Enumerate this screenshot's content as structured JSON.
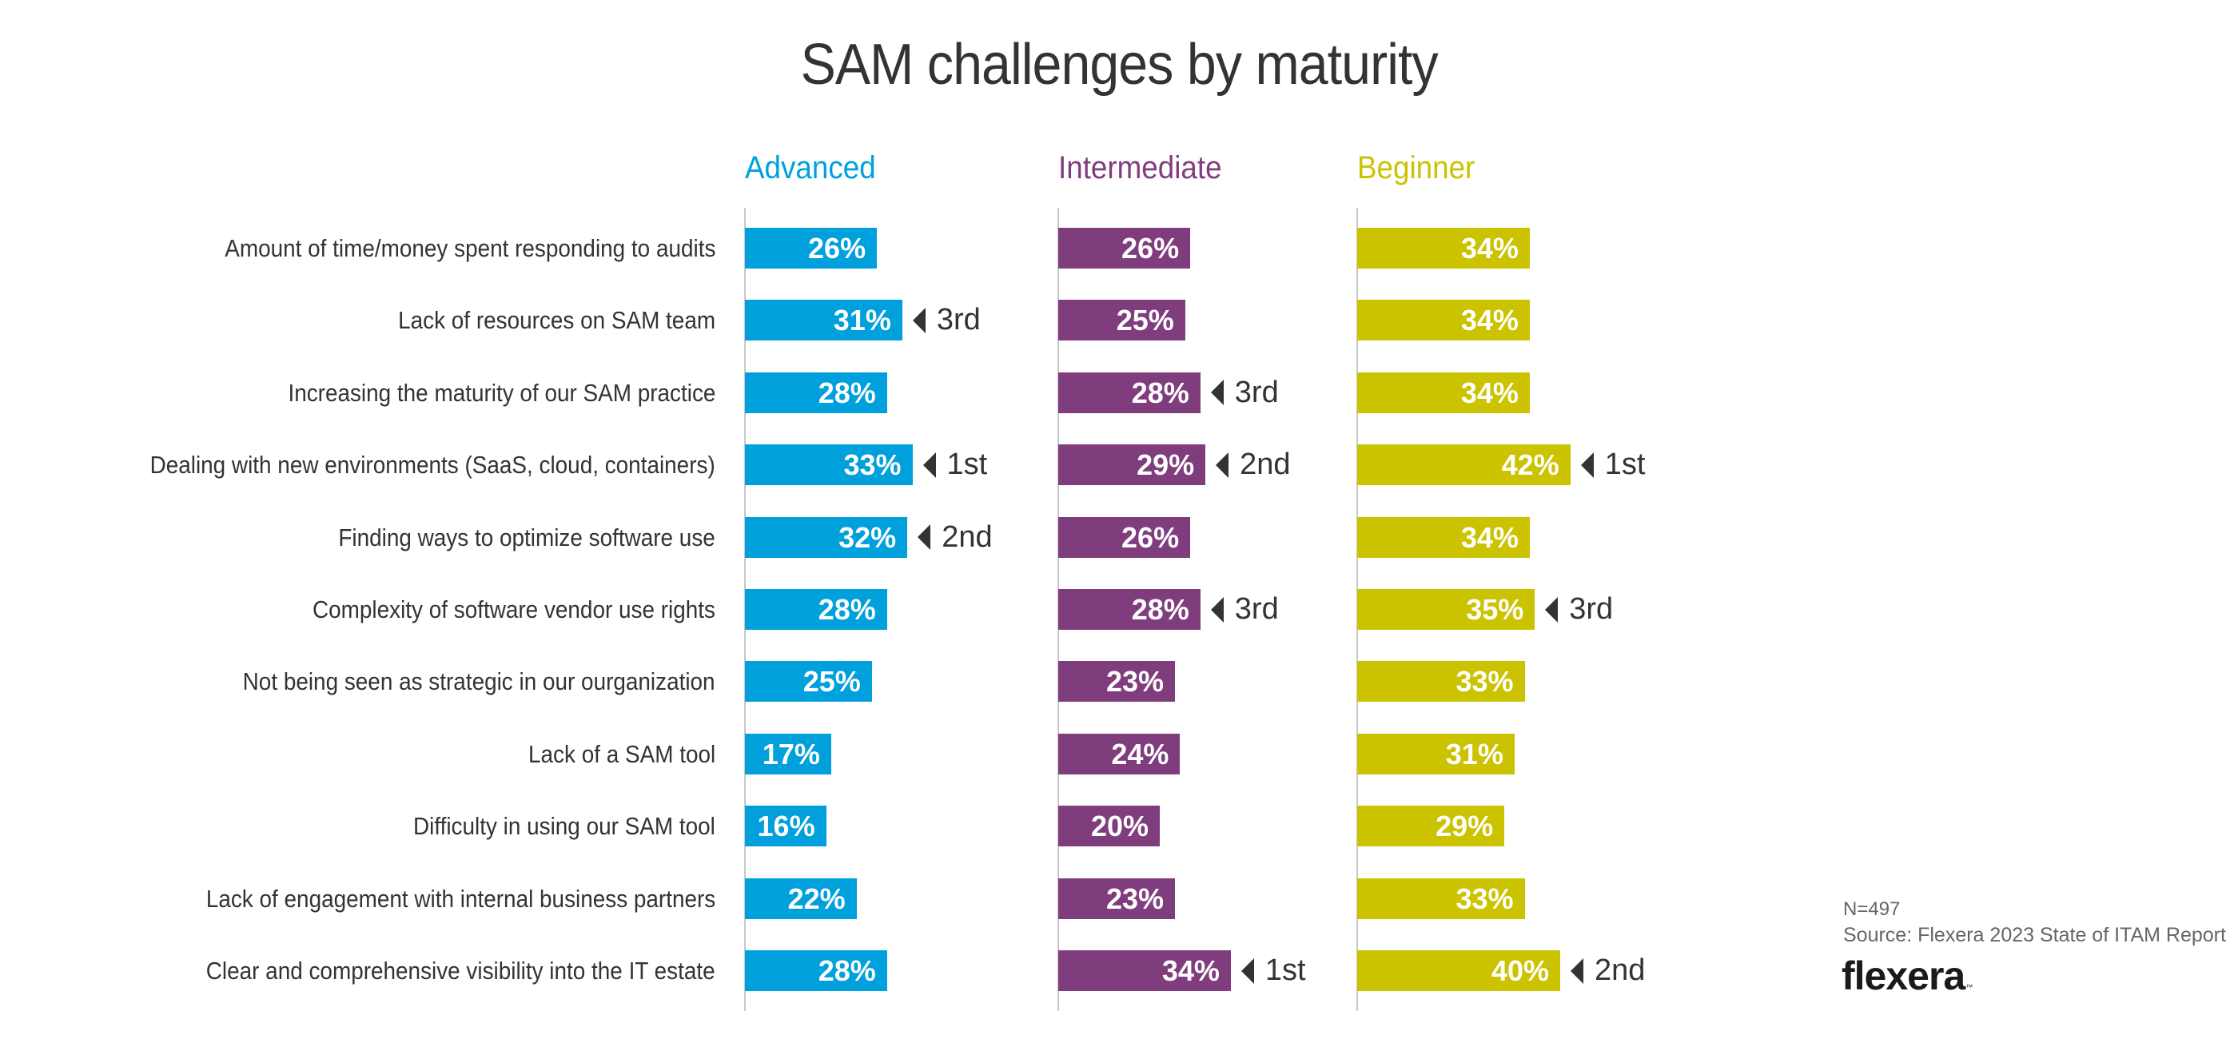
{
  "chart_data": {
    "type": "bar",
    "orientation": "horizontal",
    "title": "SAM challenges by maturity",
    "xlabel": "",
    "ylabel": "",
    "xlim": [
      0,
      100
    ],
    "unit": "%",
    "grid": false,
    "categories": [
      "Amount of time/money spent responding to audits",
      "Lack of resources on SAM team",
      "Increasing the maturity of our SAM practice",
      "Dealing with new environments (SaaS, cloud, containers)",
      "Finding ways to optimize software use",
      "Complexity of software vendor use rights",
      "Not being seen as strategic in our ourganization",
      "Lack of a SAM tool",
      "Difficulty in using our SAM tool",
      "Lack of engagement with internal business partners",
      "Clear and comprehensive visibility into the IT estate"
    ],
    "series": [
      {
        "name": "Advanced",
        "color": "#00A0DD",
        "values": [
          26,
          31,
          28,
          33,
          32,
          28,
          25,
          17,
          16,
          22,
          28
        ],
        "labels": [
          "26%",
          "31%",
          "28%",
          "33%",
          "32%",
          "28%",
          "25%",
          "17%",
          "16%",
          "22%",
          "28%"
        ],
        "ranks": [
          "",
          "3rd",
          "",
          "1st",
          "2nd",
          "",
          "",
          "",
          "",
          "",
          ""
        ]
      },
      {
        "name": "Intermediate",
        "color": "#803D7E",
        "values": [
          26,
          25,
          28,
          29,
          26,
          28,
          23,
          24,
          20,
          23,
          34
        ],
        "labels": [
          "26%",
          "25%",
          "28%",
          "29%",
          "26%",
          "28%",
          "23%",
          "24%",
          "20%",
          "23%",
          "34%"
        ],
        "ranks": [
          "",
          "",
          "3rd",
          "2nd",
          "",
          "3rd",
          "",
          "",
          "",
          "",
          "1st"
        ]
      },
      {
        "name": "Beginner",
        "color": "#CBC300",
        "values": [
          34,
          34,
          34,
          42,
          34,
          35,
          33,
          31,
          29,
          33,
          40
        ],
        "labels": [
          "34%",
          "34%",
          "34%",
          "42%",
          "34%",
          "35%",
          "33%",
          "31%",
          "29%",
          "33%",
          "40%"
        ],
        "ranks": [
          "",
          "",
          "",
          "1st",
          "",
          "3rd",
          "",
          "",
          "",
          "",
          "2nd"
        ]
      }
    ]
  },
  "footer": {
    "n": "N=497",
    "source": "Source: Flexera 2023 State of ITAM Report",
    "logo": "flexera",
    "logo_tm": "™"
  },
  "colors": {
    "text": "#333333",
    "axis": "#C8C8C8",
    "footer_text": "#666666"
  }
}
